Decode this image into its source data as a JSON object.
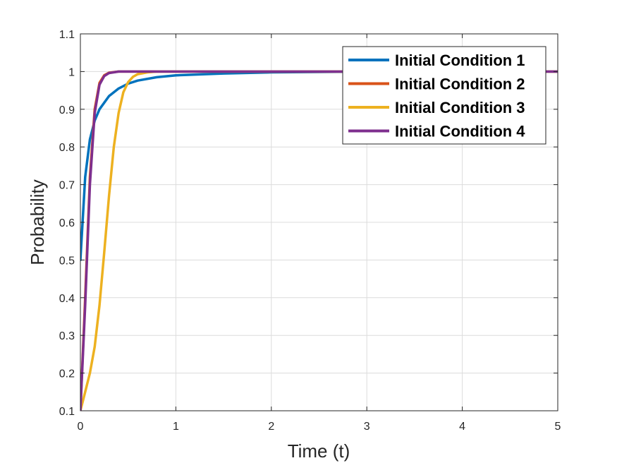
{
  "chart_data": {
    "type": "line",
    "title": "",
    "xlabel": "Time (t)",
    "ylabel": "Probability",
    "xlim": [
      0,
      5
    ],
    "ylim": [
      0.1,
      1.1
    ],
    "xticks": [
      0,
      1,
      2,
      3,
      4,
      5
    ],
    "xtick_labels": [
      "0",
      "1",
      "2",
      "3",
      "4",
      "5"
    ],
    "yticks": [
      0.1,
      0.2,
      0.3,
      0.4,
      0.5,
      0.6,
      0.7,
      0.8,
      0.9,
      1.0,
      1.1
    ],
    "ytick_labels": [
      "0.1",
      "0.2",
      "0.3",
      "0.4",
      "0.5",
      "0.6",
      "0.7",
      "0.8",
      "0.9",
      "1",
      "1.1"
    ],
    "grid": true,
    "legend_position": "top-right",
    "series": [
      {
        "name": "Initial Condition 1",
        "color": "#0072BD",
        "x": [
          0,
          0.05,
          0.1,
          0.15,
          0.2,
          0.3,
          0.4,
          0.5,
          0.6,
          0.8,
          1.0,
          1.5,
          2.0,
          3.0,
          5.0
        ],
        "y": [
          0.5,
          0.72,
          0.82,
          0.87,
          0.9,
          0.935,
          0.955,
          0.968,
          0.976,
          0.985,
          0.99,
          0.995,
          0.998,
          1.0,
          1.0
        ]
      },
      {
        "name": "Initial Condition 2",
        "color": "#D95319",
        "x": [
          0,
          0.05,
          0.1,
          0.15,
          0.2,
          0.25,
          0.3,
          0.4,
          0.5,
          1.0,
          2.0,
          5.0
        ],
        "y": [
          0.1,
          0.4,
          0.72,
          0.9,
          0.97,
          0.99,
          0.997,
          1.0,
          1.0,
          1.0,
          1.0,
          1.0
        ]
      },
      {
        "name": "Initial Condition 3",
        "color": "#EDB120",
        "x": [
          0,
          0.05,
          0.1,
          0.15,
          0.2,
          0.25,
          0.3,
          0.35,
          0.4,
          0.45,
          0.5,
          0.55,
          0.6,
          0.7,
          0.8,
          1.0,
          2.0,
          5.0
        ],
        "y": [
          0.1,
          0.15,
          0.2,
          0.27,
          0.38,
          0.52,
          0.67,
          0.8,
          0.89,
          0.945,
          0.972,
          0.986,
          0.993,
          0.998,
          1.0,
          1.0,
          1.0,
          1.0
        ]
      },
      {
        "name": "Initial Condition 4",
        "color": "#7E2F8E",
        "x": [
          0,
          0.05,
          0.1,
          0.15,
          0.2,
          0.25,
          0.3,
          0.4,
          0.5,
          1.0,
          2.0,
          5.0
        ],
        "y": [
          0.1,
          0.38,
          0.7,
          0.89,
          0.965,
          0.988,
          0.996,
          1.0,
          1.0,
          1.0,
          1.0,
          1.0
        ]
      }
    ]
  }
}
